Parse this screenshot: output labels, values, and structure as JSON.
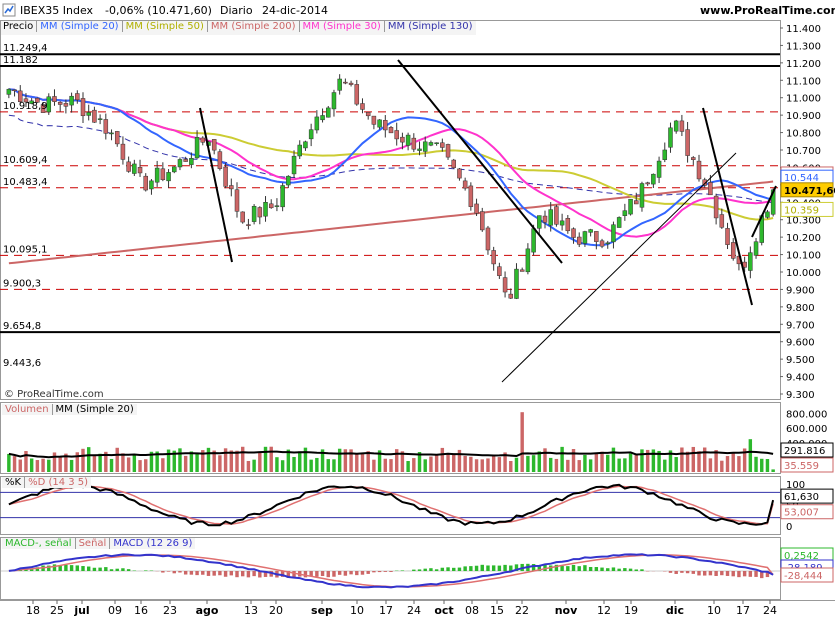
{
  "header": {
    "symbol": "IBEX35 Index",
    "change": "-0,06% (10.471,60)",
    "period": "Diario",
    "date": "24-dic-2014",
    "site": "www.ProRealTime.com"
  },
  "price_panel": {
    "legend": [
      "Precio",
      "MM (Simple 20)",
      "MM (Simple 50)",
      "MM (Simple 200)",
      "MM (Simple 30)",
      "MM (Simple 130)"
    ],
    "copyright": "© ProRealTime.com",
    "left_levels": [
      "11.249,4",
      "11.182",
      "10.918,9",
      "10.609,4",
      "10.483,4",
      "10.095,1",
      "9.900,3",
      "9.654,8",
      "9.443,6"
    ],
    "axis_ticks": [
      "11.400",
      "11.300",
      "11.200",
      "11.100",
      "11.000",
      "10.900",
      "10.800",
      "10.700",
      "10.600",
      "10.500",
      "10.400",
      "10.300",
      "10.200",
      "10.100",
      "10.000",
      "9.900",
      "9.800",
      "9.700",
      "9.600",
      "9.500",
      "9.400",
      "9.300"
    ],
    "value_badges": [
      "10.551",
      "10.544",
      "10.471,60",
      "10.359"
    ]
  },
  "volume_panel": {
    "legend": [
      "Volumen",
      "MM (Simple 20)"
    ],
    "axis_ticks": [
      "800.000",
      "600.000",
      "400.000",
      "200.000"
    ],
    "value_badges": [
      "291.816",
      "35.559"
    ]
  },
  "stoch_panel": {
    "legend": [
      "%K",
      "%D (14 3 5)"
    ],
    "axis_ticks": [
      "100",
      "50",
      "0"
    ],
    "value_badges": [
      "61,630",
      "53,007"
    ]
  },
  "macd_panel": {
    "legend": [
      "MACD-, señal",
      "Señal",
      "MACD (12 26 9)"
    ],
    "value_badges": [
      "0,2542",
      "-28,189",
      "-28,444"
    ]
  },
  "x_axis": {
    "labels": [
      "18",
      "25",
      "jul",
      "09",
      "16",
      "23",
      "ago",
      "13",
      "20",
      "sep",
      "10",
      "17",
      "24",
      "oct",
      "08",
      "15",
      "22",
      "nov",
      "12",
      "19",
      "dic",
      "10",
      "17",
      "24"
    ]
  },
  "colors": {
    "up": "#2db82d",
    "down": "#cc6666",
    "ma20": "#3366ff",
    "ma50": "#cccc33",
    "ma200": "#cc6666",
    "ma30": "#ff33cc",
    "ma130": "#3333aa",
    "hline_red": "#cc0000"
  },
  "chart_data": {
    "type": "candlestick",
    "title": "IBEX35 Index Diario",
    "ylim": [
      9300,
      11450
    ],
    "dates": [
      "18 jun",
      "25 jun",
      "1 jul",
      "9 jul",
      "16 jul",
      "23 jul",
      "1 ago",
      "13 ago",
      "20 ago",
      "1 sep",
      "10 sep",
      "17 sep",
      "24 sep",
      "1 oct",
      "8 oct",
      "15 oct",
      "22 oct",
      "3 nov",
      "12 nov",
      "19 nov",
      "1 dic",
      "10 dic",
      "17 dic",
      "24 dic"
    ],
    "close": [
      11050,
      10960,
      10980,
      10820,
      10500,
      10600,
      10780,
      10300,
      10380,
      10820,
      11100,
      10850,
      10760,
      10680,
      10400,
      9820,
      10350,
      10200,
      10200,
      10450,
      10860,
      10500,
      10000,
      10471.6
    ],
    "horizontal_levels": [
      11249.4,
      11182,
      10918.9,
      10609.4,
      10483.4,
      10095.1,
      9900.3,
      9654.8,
      9443.6
    ],
    "last": 10471.6,
    "volume_last": 291816,
    "stochastic": {
      "k": 61.63,
      "d": 53.007
    },
    "macd": {
      "histogram": 0.2542,
      "signal": -28.189,
      "macd": -28.444
    }
  }
}
